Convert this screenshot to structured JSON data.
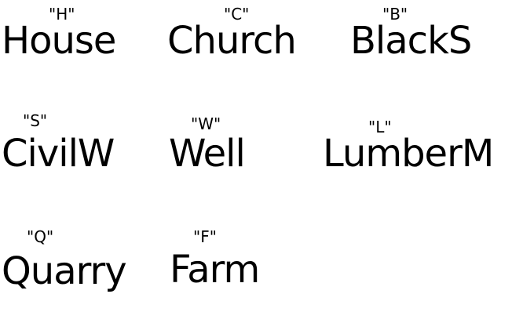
{
  "items": [
    {
      "key": "\"H\"",
      "label": "House"
    },
    {
      "key": "\"C\"",
      "label": "Church"
    },
    {
      "key": "\"B\"",
      "label": "BlackS"
    },
    {
      "key": "\"S\"",
      "label": "CivilW"
    },
    {
      "key": "\"W\"",
      "label": "Well"
    },
    {
      "key": "\"L\"",
      "label": "LumberM"
    },
    {
      "key": "\"Q\"",
      "label": "Quarry"
    },
    {
      "key": "\"F\"",
      "label": "Farm"
    }
  ]
}
